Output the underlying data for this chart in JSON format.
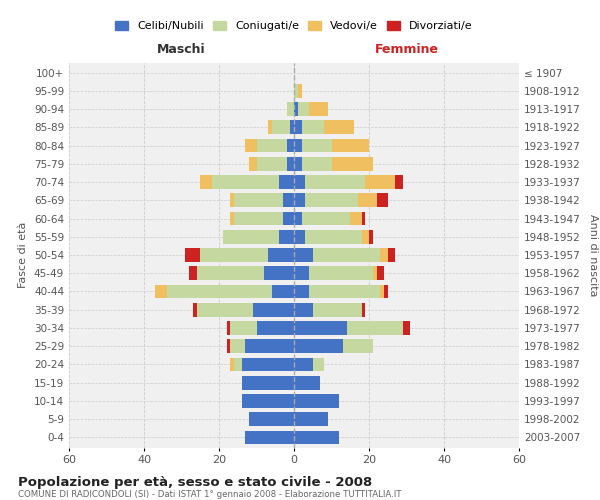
{
  "age_groups": [
    "0-4",
    "5-9",
    "10-14",
    "15-19",
    "20-24",
    "25-29",
    "30-34",
    "35-39",
    "40-44",
    "45-49",
    "50-54",
    "55-59",
    "60-64",
    "65-69",
    "70-74",
    "75-79",
    "80-84",
    "85-89",
    "90-94",
    "95-99",
    "100+"
  ],
  "birth_years": [
    "2003-2007",
    "1998-2002",
    "1993-1997",
    "1988-1992",
    "1983-1987",
    "1978-1982",
    "1973-1977",
    "1968-1972",
    "1963-1967",
    "1958-1962",
    "1953-1957",
    "1948-1952",
    "1943-1947",
    "1938-1942",
    "1933-1937",
    "1928-1932",
    "1923-1927",
    "1918-1922",
    "1913-1917",
    "1908-1912",
    "≤ 1907"
  ],
  "male": {
    "celibe": [
      13,
      12,
      14,
      14,
      14,
      13,
      10,
      11,
      6,
      8,
      7,
      4,
      3,
      3,
      4,
      2,
      2,
      1,
      0,
      0,
      0
    ],
    "coniugato": [
      0,
      0,
      0,
      0,
      2,
      4,
      7,
      15,
      28,
      18,
      18,
      15,
      13,
      13,
      18,
      8,
      8,
      5,
      2,
      0,
      0
    ],
    "vedovo": [
      0,
      0,
      0,
      0,
      1,
      0,
      0,
      0,
      3,
      0,
      0,
      0,
      1,
      1,
      3,
      2,
      3,
      1,
      0,
      0,
      0
    ],
    "divorziato": [
      0,
      0,
      0,
      0,
      0,
      1,
      1,
      1,
      0,
      2,
      4,
      0,
      0,
      0,
      0,
      0,
      0,
      0,
      0,
      0,
      0
    ]
  },
  "female": {
    "nubile": [
      12,
      9,
      12,
      7,
      5,
      13,
      14,
      5,
      4,
      4,
      5,
      3,
      2,
      3,
      3,
      2,
      2,
      2,
      1,
      0,
      0
    ],
    "coniugata": [
      0,
      0,
      0,
      0,
      3,
      8,
      15,
      13,
      19,
      17,
      18,
      15,
      13,
      14,
      16,
      8,
      8,
      6,
      3,
      1,
      0
    ],
    "vedova": [
      0,
      0,
      0,
      0,
      0,
      0,
      0,
      0,
      1,
      1,
      2,
      2,
      3,
      5,
      8,
      11,
      10,
      8,
      5,
      1,
      0
    ],
    "divorziata": [
      0,
      0,
      0,
      0,
      0,
      0,
      2,
      1,
      1,
      2,
      2,
      1,
      1,
      3,
      2,
      0,
      0,
      0,
      0,
      0,
      0
    ]
  },
  "color_celibe": "#4472C4",
  "color_coniugato": "#c5d8a0",
  "color_vedovo": "#f0c060",
  "color_divorziato": "#cc2222",
  "title": "Popolazione per età, sesso e stato civile - 2008",
  "subtitle": "COMUNE DI RADICONDOLI (SI) - Dati ISTAT 1° gennaio 2008 - Elaborazione TUTTITALIA.IT",
  "xlabel_left": "Maschi",
  "xlabel_right": "Femmine",
  "ylabel_left": "Fasce di età",
  "ylabel_right": "Anni di nascita",
  "xlim": 60,
  "bg_color": "#f0f0f0",
  "grid_color": "#cccccc"
}
